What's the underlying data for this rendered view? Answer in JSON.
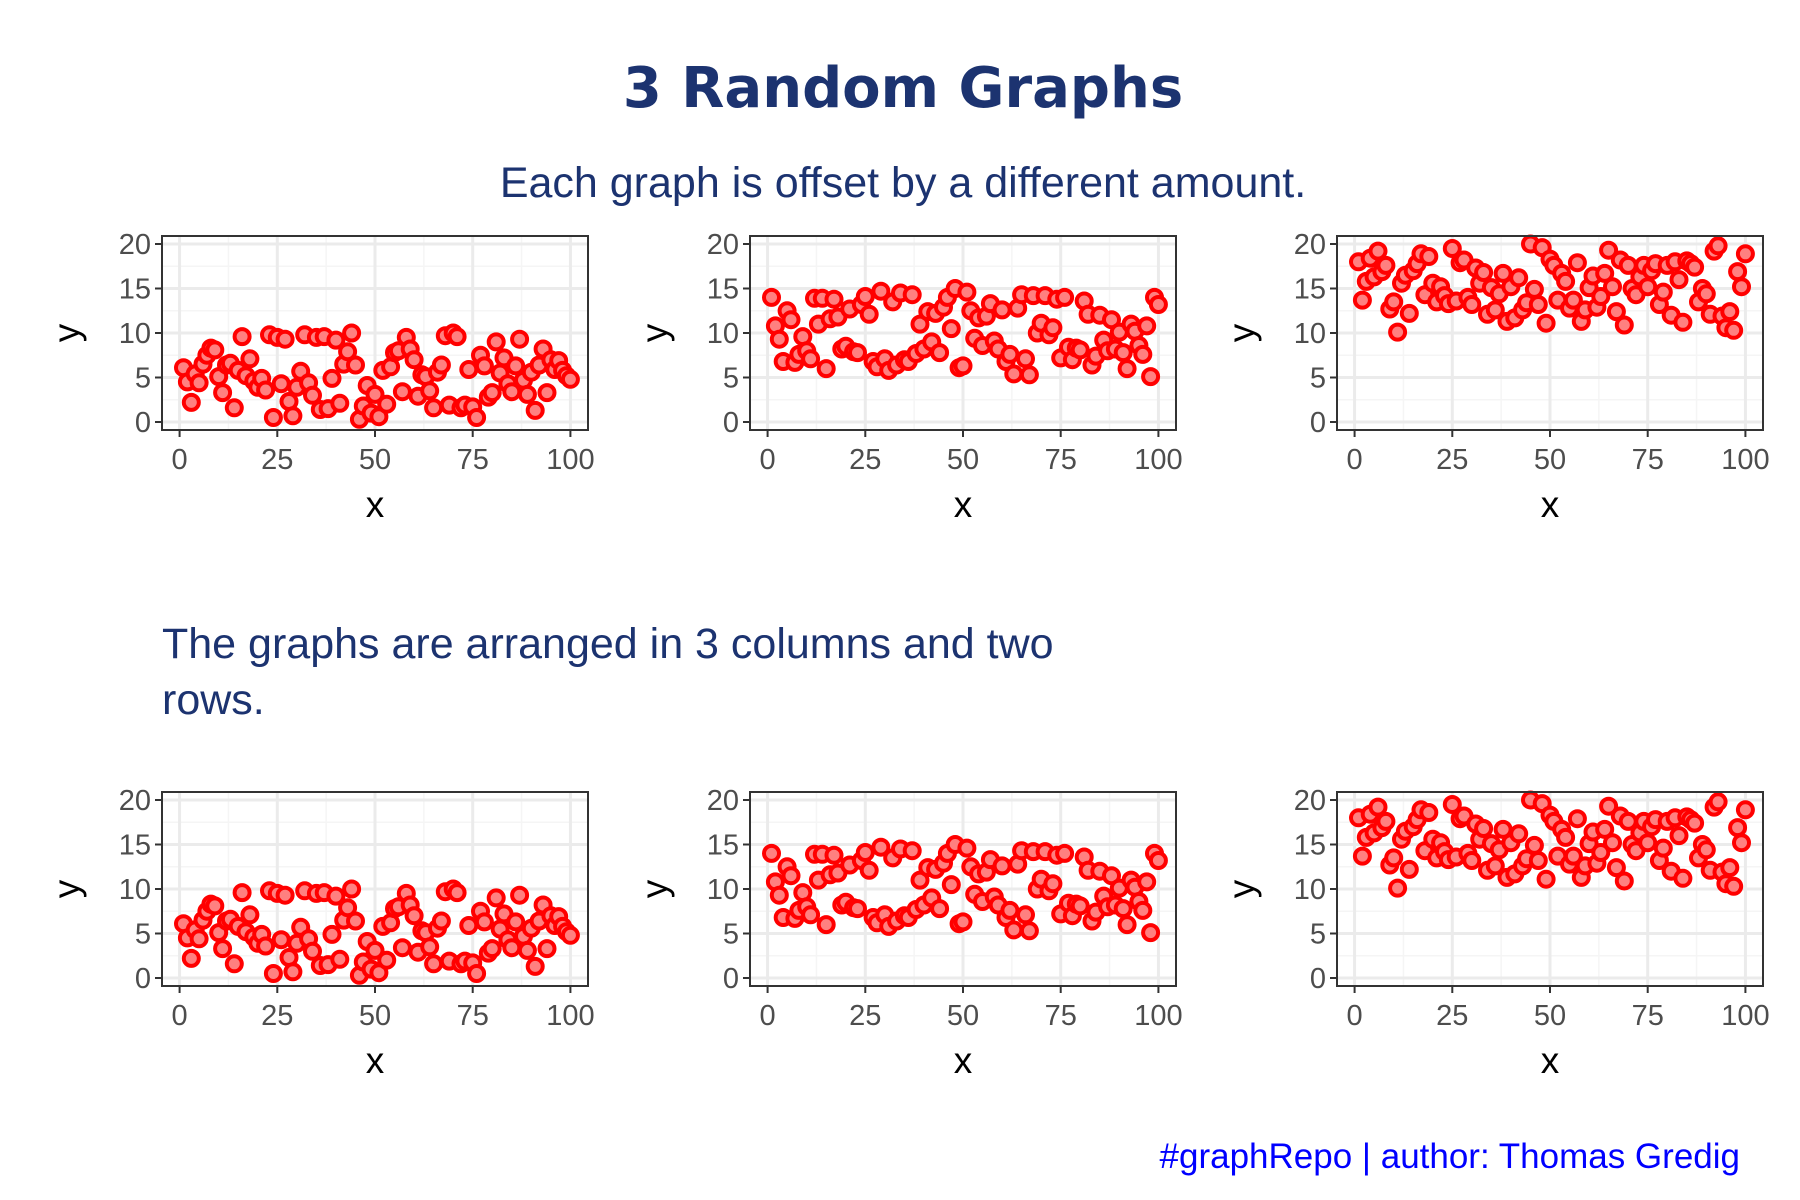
{
  "title": "3 Random Graphs",
  "subtitle": "Each graph is offset by a different amount.",
  "middle_text_lines": [
    "The graphs are arranged in 3 columns and two",
    "rows."
  ],
  "caption": "#graphRepo | author: Thomas Gredig",
  "colors": {
    "title": "#1c3370",
    "caption": "#0000ff",
    "point_stroke": "#ff0000",
    "point_fill": "#ff8080",
    "grid_major": "#ebebeb",
    "grid_minor": "#f5f5f5",
    "panel_border": "#333333"
  },
  "chart_data": [
    {
      "type": "scatter",
      "xlabel": "x",
      "ylabel": "y",
      "xlim": [
        0,
        100
      ],
      "ylim": [
        0,
        20
      ],
      "xticks": [
        "0",
        "25",
        "50",
        "75",
        "100"
      ],
      "yticks": [
        "0",
        "5",
        "10",
        "15",
        "20"
      ],
      "grid": true,
      "x": [
        1,
        2,
        3,
        4,
        5,
        6,
        7,
        8,
        9,
        10,
        11,
        12,
        13,
        14,
        15,
        16,
        17,
        18,
        19,
        20,
        21,
        22,
        23,
        24,
        25,
        26,
        27,
        28,
        29,
        30,
        31,
        32,
        33,
        34,
        35,
        36,
        37,
        38,
        39,
        40,
        41,
        42,
        43,
        44,
        45,
        46,
        47,
        48,
        49,
        50,
        51,
        52,
        53,
        54,
        55,
        56,
        57,
        58,
        59,
        60,
        61,
        62,
        63,
        64,
        65,
        66,
        67,
        68,
        69,
        70,
        71,
        72,
        73,
        74,
        75,
        76,
        77,
        78,
        79,
        80,
        81,
        82,
        83,
        84,
        85,
        86,
        87,
        88,
        89,
        90,
        91,
        92,
        93,
        94,
        95,
        96,
        97,
        98,
        99,
        100
      ],
      "y": [
        6.1,
        4.5,
        2.2,
        5.4,
        4.4,
        6.5,
        7.5,
        8.3,
        8.1,
        5.1,
        3.3,
        6.4,
        6.6,
        1.6,
        5.8,
        9.6,
        5.2,
        7.1,
        4.6,
        3.9,
        4.9,
        3.6,
        9.8,
        0.5,
        9.5,
        4.3,
        9.3,
        2.3,
        0.7,
        3.9,
        5.7,
        9.8,
        4.4,
        3.0,
        9.5,
        1.4,
        9.6,
        1.5,
        4.9,
        9.2,
        2.1,
        6.5,
        7.9,
        10.0,
        6.4,
        0.3,
        1.8,
        4.1,
        1.0,
        3.1,
        0.6,
        5.8,
        2.0,
        6.2,
        7.8,
        8.0,
        3.4,
        9.5,
        8.2,
        7.0,
        2.9,
        5.3,
        5.1,
        3.5,
        1.6,
        5.6,
        6.4,
        9.7,
        1.9,
        10.0,
        9.6,
        1.6,
        1.9,
        5.9,
        1.7,
        0.5,
        7.5,
        6.3,
        2.8,
        3.3,
        9.0,
        5.5,
        7.2,
        4.3,
        3.4,
        6.3,
        9.3,
        4.7,
        3.1,
        5.6,
        1.3,
        6.4,
        8.2,
        3.3,
        7.0,
        5.9,
        6.9,
        5.8,
        5.2,
        4.8
      ]
    },
    {
      "type": "scatter",
      "xlabel": "x",
      "ylabel": "y",
      "xlim": [
        0,
        100
      ],
      "ylim": [
        0,
        20
      ],
      "xticks": [
        "0",
        "25",
        "50",
        "75",
        "100"
      ],
      "yticks": [
        "0",
        "5",
        "10",
        "15",
        "20"
      ],
      "grid": true,
      "x": [
        1,
        2,
        3,
        4,
        5,
        6,
        7,
        8,
        9,
        10,
        11,
        12,
        13,
        14,
        15,
        16,
        17,
        18,
        19,
        20,
        21,
        22,
        23,
        24,
        25,
        26,
        27,
        28,
        29,
        30,
        31,
        32,
        33,
        34,
        35,
        36,
        37,
        38,
        39,
        40,
        41,
        42,
        43,
        44,
        45,
        46,
        47,
        48,
        49,
        50,
        51,
        52,
        53,
        54,
        55,
        56,
        57,
        58,
        59,
        60,
        61,
        62,
        63,
        64,
        65,
        66,
        67,
        68,
        69,
        70,
        71,
        72,
        73,
        74,
        75,
        76,
        77,
        78,
        79,
        80,
        81,
        82,
        83,
        84,
        85,
        86,
        87,
        88,
        89,
        90,
        91,
        92,
        93,
        94,
        95,
        96,
        97,
        98,
        99,
        100
      ],
      "y": [
        14.0,
        10.8,
        9.3,
        6.8,
        12.5,
        11.5,
        6.7,
        7.6,
        9.6,
        8.0,
        7.1,
        13.9,
        11.0,
        13.9,
        6.0,
        11.6,
        13.8,
        11.8,
        8.2,
        8.5,
        12.7,
        7.9,
        7.8,
        13.2,
        14.1,
        12.1,
        6.8,
        6.2,
        14.7,
        7.1,
        5.8,
        13.5,
        6.4,
        14.5,
        7.0,
        6.8,
        14.3,
        7.7,
        11.0,
        8.2,
        12.4,
        9.0,
        12.2,
        7.8,
        12.9,
        14.0,
        10.5,
        15.0,
        6.1,
        6.3,
        14.6,
        12.5,
        9.4,
        11.7,
        8.6,
        11.9,
        13.3,
        9.1,
        8.2,
        12.6,
        6.8,
        7.6,
        5.4,
        12.8,
        14.3,
        7.1,
        5.3,
        14.2,
        10.0,
        11.1,
        14.2,
        9.8,
        10.6,
        13.8,
        7.2,
        14.0,
        8.4,
        7.0,
        8.3,
        8.1,
        13.6,
        12.1,
        6.4,
        7.4,
        12.0,
        9.2,
        8.0,
        11.5,
        8.2,
        10.1,
        7.8,
        6.0,
        11.0,
        10.2,
        8.6,
        7.6,
        10.8,
        5.1,
        14.0,
        13.2
      ]
    },
    {
      "type": "scatter",
      "xlabel": "x",
      "ylabel": "y",
      "xlim": [
        0,
        100
      ],
      "ylim": [
        0,
        20
      ],
      "xticks": [
        "0",
        "25",
        "50",
        "75",
        "100"
      ],
      "yticks": [
        "0",
        "5",
        "10",
        "15",
        "20"
      ],
      "grid": true,
      "x": [
        1,
        2,
        3,
        4,
        5,
        6,
        7,
        8,
        9,
        10,
        11,
        12,
        13,
        14,
        15,
        16,
        17,
        18,
        19,
        20,
        21,
        22,
        23,
        24,
        25,
        26,
        27,
        28,
        29,
        30,
        31,
        32,
        33,
        34,
        35,
        36,
        37,
        38,
        39,
        40,
        41,
        42,
        43,
        44,
        45,
        46,
        47,
        48,
        49,
        50,
        51,
        52,
        53,
        54,
        55,
        56,
        57,
        58,
        59,
        60,
        61,
        62,
        63,
        64,
        65,
        66,
        67,
        68,
        69,
        70,
        71,
        72,
        73,
        74,
        75,
        76,
        77,
        78,
        79,
        80,
        81,
        82,
        83,
        84,
        85,
        86,
        87,
        88,
        89,
        90,
        91,
        92,
        93,
        94,
        95,
        96,
        97,
        98,
        99,
        100
      ],
      "y": [
        18.0,
        13.7,
        15.8,
        18.4,
        16.3,
        19.2,
        16.9,
        17.6,
        12.7,
        13.5,
        10.1,
        15.6,
        16.5,
        12.2,
        17.0,
        17.8,
        18.9,
        14.3,
        18.6,
        15.6,
        13.5,
        15.2,
        14.2,
        13.3,
        19.5,
        13.6,
        17.9,
        18.2,
        14.0,
        13.2,
        17.3,
        15.6,
        16.8,
        12.1,
        15.1,
        12.6,
        14.4,
        16.7,
        11.3,
        15.2,
        11.7,
        16.2,
        12.6,
        13.4,
        20.0,
        14.9,
        13.2,
        19.6,
        11.1,
        18.3,
        17.6,
        13.7,
        16.7,
        15.8,
        12.8,
        13.7,
        17.9,
        11.3,
        12.6,
        15.1,
        16.4,
        12.9,
        14.1,
        16.7,
        19.3,
        15.2,
        12.4,
        18.2,
        10.9,
        17.6,
        15.0,
        14.3,
        16.3,
        17.6,
        15.2,
        17.0,
        17.8,
        13.2,
        14.6,
        17.6,
        12.0,
        18.0,
        16.0,
        11.2,
        18.1,
        17.8,
        17.4,
        13.5,
        15.0,
        14.4,
        12.1,
        19.2,
        19.8,
        11.9,
        10.6,
        12.4,
        10.3,
        16.9,
        15.2,
        18.9
      ]
    },
    {
      "type": "scatter",
      "xlabel": "x",
      "ylabel": "y",
      "xlim": [
        0,
        100
      ],
      "ylim": [
        0,
        20
      ],
      "xticks": [
        "0",
        "25",
        "50",
        "75",
        "100"
      ],
      "yticks": [
        "0",
        "5",
        "10",
        "15",
        "20"
      ],
      "grid": true,
      "x": [
        1,
        2,
        3,
        4,
        5,
        6,
        7,
        8,
        9,
        10,
        11,
        12,
        13,
        14,
        15,
        16,
        17,
        18,
        19,
        20,
        21,
        22,
        23,
        24,
        25,
        26,
        27,
        28,
        29,
        30,
        31,
        32,
        33,
        34,
        35,
        36,
        37,
        38,
        39,
        40,
        41,
        42,
        43,
        44,
        45,
        46,
        47,
        48,
        49,
        50,
        51,
        52,
        53,
        54,
        55,
        56,
        57,
        58,
        59,
        60,
        61,
        62,
        63,
        64,
        65,
        66,
        67,
        68,
        69,
        70,
        71,
        72,
        73,
        74,
        75,
        76,
        77,
        78,
        79,
        80,
        81,
        82,
        83,
        84,
        85,
        86,
        87,
        88,
        89,
        90,
        91,
        92,
        93,
        94,
        95,
        96,
        97,
        98,
        99,
        100
      ],
      "y": [
        6.1,
        4.5,
        2.2,
        5.4,
        4.4,
        6.5,
        7.5,
        8.3,
        8.1,
        5.1,
        3.3,
        6.4,
        6.6,
        1.6,
        5.8,
        9.6,
        5.2,
        7.1,
        4.6,
        3.9,
        4.9,
        3.6,
        9.8,
        0.5,
        9.5,
        4.3,
        9.3,
        2.3,
        0.7,
        3.9,
        5.7,
        9.8,
        4.4,
        3.0,
        9.5,
        1.4,
        9.6,
        1.5,
        4.9,
        9.2,
        2.1,
        6.5,
        7.9,
        10.0,
        6.4,
        0.3,
        1.8,
        4.1,
        1.0,
        3.1,
        0.6,
        5.8,
        2.0,
        6.2,
        7.8,
        8.0,
        3.4,
        9.5,
        8.2,
        7.0,
        2.9,
        5.3,
        5.1,
        3.5,
        1.6,
        5.6,
        6.4,
        9.7,
        1.9,
        10.0,
        9.6,
        1.6,
        1.9,
        5.9,
        1.7,
        0.5,
        7.5,
        6.3,
        2.8,
        3.3,
        9.0,
        5.5,
        7.2,
        4.3,
        3.4,
        6.3,
        9.3,
        4.7,
        3.1,
        5.6,
        1.3,
        6.4,
        8.2,
        3.3,
        7.0,
        5.9,
        6.9,
        5.8,
        5.2,
        4.8
      ]
    },
    {
      "type": "scatter",
      "xlabel": "x",
      "ylabel": "y",
      "xlim": [
        0,
        100
      ],
      "ylim": [
        0,
        20
      ],
      "xticks": [
        "0",
        "25",
        "50",
        "75",
        "100"
      ],
      "yticks": [
        "0",
        "5",
        "10",
        "15",
        "20"
      ],
      "grid": true,
      "x": [
        1,
        2,
        3,
        4,
        5,
        6,
        7,
        8,
        9,
        10,
        11,
        12,
        13,
        14,
        15,
        16,
        17,
        18,
        19,
        20,
        21,
        22,
        23,
        24,
        25,
        26,
        27,
        28,
        29,
        30,
        31,
        32,
        33,
        34,
        35,
        36,
        37,
        38,
        39,
        40,
        41,
        42,
        43,
        44,
        45,
        46,
        47,
        48,
        49,
        50,
        51,
        52,
        53,
        54,
        55,
        56,
        57,
        58,
        59,
        60,
        61,
        62,
        63,
        64,
        65,
        66,
        67,
        68,
        69,
        70,
        71,
        72,
        73,
        74,
        75,
        76,
        77,
        78,
        79,
        80,
        81,
        82,
        83,
        84,
        85,
        86,
        87,
        88,
        89,
        90,
        91,
        92,
        93,
        94,
        95,
        96,
        97,
        98,
        99,
        100
      ],
      "y": [
        14.0,
        10.8,
        9.3,
        6.8,
        12.5,
        11.5,
        6.7,
        7.6,
        9.6,
        8.0,
        7.1,
        13.9,
        11.0,
        13.9,
        6.0,
        11.6,
        13.8,
        11.8,
        8.2,
        8.5,
        12.7,
        7.9,
        7.8,
        13.2,
        14.1,
        12.1,
        6.8,
        6.2,
        14.7,
        7.1,
        5.8,
        13.5,
        6.4,
        14.5,
        7.0,
        6.8,
        14.3,
        7.7,
        11.0,
        8.2,
        12.4,
        9.0,
        12.2,
        7.8,
        12.9,
        14.0,
        10.5,
        15.0,
        6.1,
        6.3,
        14.6,
        12.5,
        9.4,
        11.7,
        8.6,
        11.9,
        13.3,
        9.1,
        8.2,
        12.6,
        6.8,
        7.6,
        5.4,
        12.8,
        14.3,
        7.1,
        5.3,
        14.2,
        10.0,
        11.1,
        14.2,
        9.8,
        10.6,
        13.8,
        7.2,
        14.0,
        8.4,
        7.0,
        8.3,
        8.1,
        13.6,
        12.1,
        6.4,
        7.4,
        12.0,
        9.2,
        8.0,
        11.5,
        8.2,
        10.1,
        7.8,
        6.0,
        11.0,
        10.2,
        8.6,
        7.6,
        10.8,
        5.1,
        14.0,
        13.2
      ]
    },
    {
      "type": "scatter",
      "xlabel": "x",
      "ylabel": "y",
      "xlim": [
        0,
        100
      ],
      "ylim": [
        0,
        20
      ],
      "xticks": [
        "0",
        "25",
        "50",
        "75",
        "100"
      ],
      "yticks": [
        "0",
        "5",
        "10",
        "15",
        "20"
      ],
      "grid": true,
      "x": [
        1,
        2,
        3,
        4,
        5,
        6,
        7,
        8,
        9,
        10,
        11,
        12,
        13,
        14,
        15,
        16,
        17,
        18,
        19,
        20,
        21,
        22,
        23,
        24,
        25,
        26,
        27,
        28,
        29,
        30,
        31,
        32,
        33,
        34,
        35,
        36,
        37,
        38,
        39,
        40,
        41,
        42,
        43,
        44,
        45,
        46,
        47,
        48,
        49,
        50,
        51,
        52,
        53,
        54,
        55,
        56,
        57,
        58,
        59,
        60,
        61,
        62,
        63,
        64,
        65,
        66,
        67,
        68,
        69,
        70,
        71,
        72,
        73,
        74,
        75,
        76,
        77,
        78,
        79,
        80,
        81,
        82,
        83,
        84,
        85,
        86,
        87,
        88,
        89,
        90,
        91,
        92,
        93,
        94,
        95,
        96,
        97,
        98,
        99,
        100
      ],
      "y": [
        18.0,
        13.7,
        15.8,
        18.4,
        16.3,
        19.2,
        16.9,
        17.6,
        12.7,
        13.5,
        10.1,
        15.6,
        16.5,
        12.2,
        17.0,
        17.8,
        18.9,
        14.3,
        18.6,
        15.6,
        13.5,
        15.2,
        14.2,
        13.3,
        19.5,
        13.6,
        17.9,
        18.2,
        14.0,
        13.2,
        17.3,
        15.6,
        16.8,
        12.1,
        15.1,
        12.6,
        14.4,
        16.7,
        11.3,
        15.2,
        11.7,
        16.2,
        12.6,
        13.4,
        20.0,
        14.9,
        13.2,
        19.6,
        11.1,
        18.3,
        17.6,
        13.7,
        16.7,
        15.8,
        12.8,
        13.7,
        17.9,
        11.3,
        12.6,
        15.1,
        16.4,
        12.9,
        14.1,
        16.7,
        19.3,
        15.2,
        12.4,
        18.2,
        10.9,
        17.6,
        15.0,
        14.3,
        16.3,
        17.6,
        15.2,
        17.0,
        17.8,
        13.2,
        14.6,
        17.6,
        12.0,
        18.0,
        16.0,
        11.2,
        18.1,
        17.8,
        17.4,
        13.5,
        15.0,
        14.4,
        12.1,
        19.2,
        19.8,
        11.9,
        10.6,
        12.4,
        10.3,
        16.9,
        15.2,
        18.9
      ]
    }
  ]
}
